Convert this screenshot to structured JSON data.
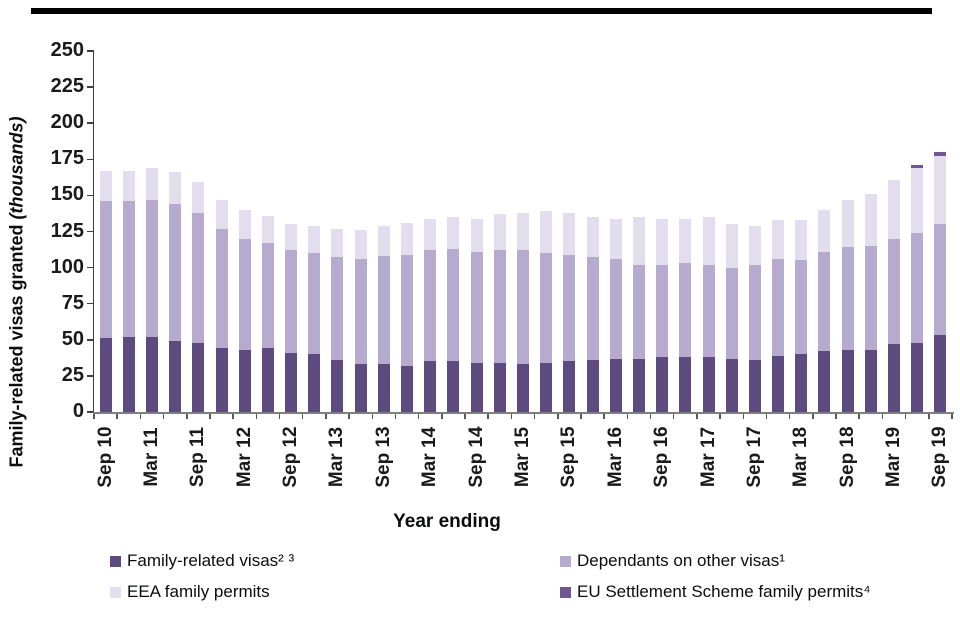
{
  "chart_data": {
    "type": "bar",
    "stacked": true,
    "xlabel": "Year ending",
    "ylabel_main": "Family-related visas granted ",
    "ylabel_unit": "(thousands)",
    "ylim": [
      0,
      250
    ],
    "yticks": [
      0,
      25,
      50,
      75,
      100,
      125,
      150,
      175,
      200,
      225,
      250
    ],
    "grid": false,
    "legend_position": "bottom",
    "categories": [
      "Sep 10",
      "",
      "Mar 11",
      "",
      "Sep 11",
      "",
      "Mar 12",
      "",
      "Sep 12",
      "",
      "Mar 13",
      "",
      "Sep 13",
      "",
      "Mar 14",
      "",
      "Sep 14",
      "",
      "Mar 15",
      "",
      "Sep 15",
      "",
      "Mar 16",
      "",
      "Sep 16",
      "",
      "Mar 17",
      "",
      "Sep 17",
      "",
      "Mar 18",
      "",
      "Sep 18",
      "",
      "Mar 19",
      "",
      "Sep 19"
    ],
    "series": [
      {
        "name": "Family-related visas² ³",
        "color": "#5d4a7e",
        "values": [
          51,
          52,
          52,
          49,
          48,
          44,
          43,
          44,
          41,
          40,
          36,
          33,
          33,
          32,
          35,
          35,
          34,
          34,
          33,
          34,
          35,
          36,
          37,
          37,
          38,
          38,
          38,
          37,
          36,
          39,
          40,
          42,
          43,
          43,
          47,
          48,
          53
        ]
      },
      {
        "name": "Dependants on other visas¹",
        "color": "#b6abce",
        "values": [
          95,
          94,
          95,
          95,
          90,
          83,
          77,
          73,
          71,
          70,
          71,
          73,
          75,
          77,
          77,
          78,
          77,
          78,
          79,
          76,
          74,
          71,
          69,
          65,
          64,
          65,
          64,
          63,
          66,
          67,
          65,
          69,
          71,
          72,
          73,
          76,
          77
        ]
      },
      {
        "name": "EEA family permits",
        "color": "#e2deee",
        "values": [
          21,
          21,
          22,
          22,
          21,
          20,
          20,
          19,
          18,
          19,
          20,
          20,
          21,
          22,
          22,
          22,
          23,
          25,
          26,
          29,
          29,
          28,
          28,
          33,
          32,
          31,
          33,
          30,
          27,
          27,
          28,
          29,
          33,
          36,
          41,
          45,
          47
        ]
      },
      {
        "name": "EU Settlement Scheme family permits⁴",
        "color": "#6d5894",
        "values": [
          0,
          0,
          0,
          0,
          0,
          0,
          0,
          0,
          0,
          0,
          0,
          0,
          0,
          0,
          0,
          0,
          0,
          0,
          0,
          0,
          0,
          0,
          0,
          0,
          0,
          0,
          0,
          0,
          0,
          0,
          0,
          0,
          0,
          0,
          0,
          2,
          3
        ]
      }
    ],
    "axis_colors": {
      "y_axis": "#3f3f3f",
      "x_axis": "#7f7f7f",
      "tick": "#595959"
    }
  }
}
